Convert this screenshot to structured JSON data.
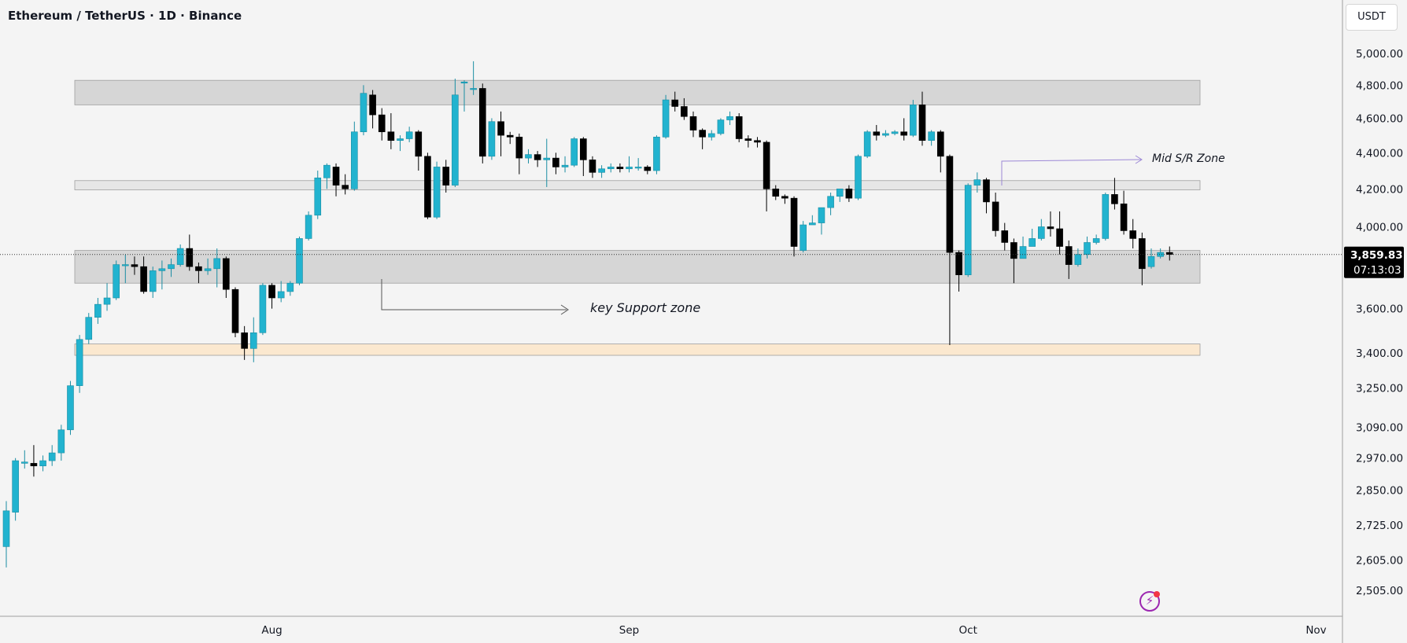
{
  "header": {
    "title": "Ethereum / TetherUS · 1D · Binance",
    "currency": "USDT"
  },
  "price_label": {
    "price": "3,859.83",
    "countdown": "07:13:03"
  },
  "colors": {
    "up": "#22b3cf",
    "down": "#000000",
    "zone_grey": "#d6d6d6",
    "zone_light": "#e6e6e6",
    "zone_orange": "#fbe8cf",
    "arrow_purple": "#9c88d6"
  },
  "chart_data": {
    "type": "candlestick",
    "title": "Ethereum / TetherUS · 1D · Binance",
    "yscale": "log",
    "ylim": [
      2420,
      5200
    ],
    "ytick_labels": [
      "5,000.00",
      "4,800.00",
      "4,600.00",
      "4,400.00",
      "4,200.00",
      "4,000.00",
      "3,600.00",
      "3,400.00",
      "3,250.00",
      "3,090.00",
      "2,970.00",
      "2,850.00",
      "2,725.00",
      "2,605.00",
      "2,505.00"
    ],
    "ytick_values": [
      5000,
      4800,
      4600,
      4400,
      4200,
      4000,
      3600,
      3400,
      3250,
      3090,
      2970,
      2850,
      2725,
      2605,
      2505
    ],
    "xtick_labels": [
      "Aug",
      "Sep",
      "Oct",
      "Nov"
    ],
    "xtick_index": [
      29,
      68,
      105,
      143
    ],
    "last_price": 3859.83,
    "zones": [
      {
        "name": "resistance-zone",
        "low": 4680,
        "high": 4830
      },
      {
        "name": "mid-sr-zone",
        "low": 4195,
        "high": 4245
      },
      {
        "name": "key-support-zone",
        "low": 3720,
        "high": 3880
      },
      {
        "name": "bottom-support-zone",
        "low": 3390,
        "high": 3440
      }
    ],
    "annotations": [
      {
        "name": "key-support-label",
        "text": "key Support zone"
      },
      {
        "name": "mid-sr-label",
        "text": "Mid S/R Zone"
      }
    ],
    "candles": [
      [
        2650,
        2775,
        2580,
        2810
      ],
      [
        2770,
        2960,
        2740,
        2970
      ],
      [
        2950,
        2955,
        2930,
        3000
      ],
      [
        2950,
        2940,
        2900,
        3020
      ],
      [
        2940,
        2960,
        2920,
        2980
      ],
      [
        2960,
        2990,
        2940,
        3020
      ],
      [
        2990,
        3080,
        2960,
        3100
      ],
      [
        3080,
        3260,
        3060,
        3280
      ],
      [
        3260,
        3460,
        3230,
        3480
      ],
      [
        3460,
        3560,
        3440,
        3580
      ],
      [
        3560,
        3620,
        3530,
        3650
      ],
      [
        3620,
        3650,
        3590,
        3720
      ],
      [
        3650,
        3810,
        3640,
        3830
      ],
      [
        3810,
        3810,
        3720,
        3860
      ],
      [
        3810,
        3800,
        3760,
        3850
      ],
      [
        3800,
        3680,
        3670,
        3850
      ],
      [
        3680,
        3780,
        3650,
        3800
      ],
      [
        3780,
        3790,
        3690,
        3830
      ],
      [
        3790,
        3810,
        3750,
        3840
      ],
      [
        3810,
        3890,
        3800,
        3910
      ],
      [
        3890,
        3800,
        3780,
        3960
      ],
      [
        3800,
        3780,
        3720,
        3820
      ],
      [
        3780,
        3790,
        3760,
        3840
      ],
      [
        3790,
        3840,
        3700,
        3890
      ],
      [
        3840,
        3690,
        3650,
        3850
      ],
      [
        3690,
        3490,
        3470,
        3700
      ],
      [
        3490,
        3420,
        3370,
        3520
      ],
      [
        3420,
        3490,
        3360,
        3560
      ],
      [
        3490,
        3710,
        3480,
        3720
      ],
      [
        3710,
        3650,
        3600,
        3720
      ],
      [
        3650,
        3680,
        3630,
        3730
      ],
      [
        3680,
        3720,
        3660,
        3730
      ],
      [
        3720,
        3940,
        3710,
        3950
      ],
      [
        3940,
        4060,
        3930,
        4080
      ],
      [
        4060,
        4260,
        4040,
        4300
      ],
      [
        4260,
        4330,
        4200,
        4340
      ],
      [
        4320,
        4220,
        4160,
        4340
      ],
      [
        4220,
        4200,
        4170,
        4280
      ],
      [
        4200,
        4520,
        4190,
        4580
      ],
      [
        4520,
        4750,
        4500,
        4800
      ],
      [
        4740,
        4620,
        4540,
        4770
      ],
      [
        4620,
        4520,
        4470,
        4660
      ],
      [
        4520,
        4470,
        4420,
        4630
      ],
      [
        4470,
        4480,
        4410,
        4500
      ],
      [
        4480,
        4520,
        4460,
        4550
      ],
      [
        4520,
        4380,
        4300,
        4530
      ],
      [
        4380,
        4050,
        4040,
        4400
      ],
      [
        4050,
        4320,
        4040,
        4350
      ],
      [
        4320,
        4220,
        4180,
        4360
      ],
      [
        4220,
        4740,
        4210,
        4840
      ],
      [
        4820,
        4820,
        4640,
        4830
      ],
      [
        4780,
        4780,
        4740,
        4950
      ],
      [
        4780,
        4380,
        4340,
        4810
      ],
      [
        4380,
        4580,
        4360,
        4600
      ],
      [
        4580,
        4500,
        4380,
        4640
      ],
      [
        4500,
        4490,
        4450,
        4520
      ],
      [
        4490,
        4370,
        4280,
        4510
      ],
      [
        4370,
        4390,
        4340,
        4420
      ],
      [
        4390,
        4360,
        4320,
        4410
      ],
      [
        4360,
        4370,
        4210,
        4480
      ],
      [
        4370,
        4320,
        4280,
        4400
      ],
      [
        4320,
        4330,
        4290,
        4380
      ],
      [
        4330,
        4480,
        4320,
        4490
      ],
      [
        4480,
        4360,
        4270,
        4490
      ],
      [
        4360,
        4290,
        4260,
        4380
      ],
      [
        4290,
        4310,
        4260,
        4330
      ],
      [
        4310,
        4320,
        4290,
        4340
      ],
      [
        4320,
        4310,
        4290,
        4340
      ],
      [
        4310,
        4320,
        4290,
        4380
      ],
      [
        4320,
        4320,
        4300,
        4370
      ],
      [
        4320,
        4300,
        4280,
        4330
      ],
      [
        4300,
        4490,
        4280,
        4500
      ],
      [
        4490,
        4710,
        4480,
        4740
      ],
      [
        4710,
        4670,
        4640,
        4760
      ],
      [
        4670,
        4610,
        4590,
        4720
      ],
      [
        4610,
        4530,
        4490,
        4640
      ],
      [
        4530,
        4490,
        4420,
        4540
      ],
      [
        4490,
        4510,
        4470,
        4530
      ],
      [
        4510,
        4590,
        4500,
        4600
      ],
      [
        4590,
        4610,
        4560,
        4640
      ],
      [
        4610,
        4480,
        4460,
        4630
      ],
      [
        4480,
        4470,
        4430,
        4500
      ],
      [
        4470,
        4460,
        4430,
        4490
      ],
      [
        4460,
        4200,
        4080,
        4470
      ],
      [
        4200,
        4160,
        4140,
        4220
      ],
      [
        4160,
        4150,
        4120,
        4170
      ],
      [
        4150,
        3900,
        3850,
        4160
      ],
      [
        3880,
        4010,
        3870,
        4030
      ],
      [
        4010,
        4020,
        4010,
        4060
      ],
      [
        4020,
        4100,
        3960,
        4100
      ],
      [
        4100,
        4160,
        4060,
        4180
      ],
      [
        4160,
        4200,
        4130,
        4200
      ],
      [
        4200,
        4150,
        4130,
        4220
      ],
      [
        4150,
        4380,
        4140,
        4390
      ],
      [
        4380,
        4520,
        4370,
        4530
      ],
      [
        4520,
        4500,
        4470,
        4560
      ],
      [
        4500,
        4510,
        4490,
        4530
      ],
      [
        4510,
        4520,
        4500,
        4530
      ],
      [
        4520,
        4500,
        4470,
        4600
      ],
      [
        4500,
        4680,
        4490,
        4710
      ],
      [
        4680,
        4470,
        4440,
        4760
      ],
      [
        4470,
        4520,
        4440,
        4530
      ],
      [
        4520,
        4380,
        4290,
        4530
      ],
      [
        4380,
        3870,
        3435,
        4390
      ],
      [
        3870,
        3760,
        3680,
        3880
      ],
      [
        3760,
        4220,
        3750,
        4230
      ],
      [
        4220,
        4250,
        4180,
        4290
      ],
      [
        4250,
        4130,
        4070,
        4260
      ],
      [
        4130,
        3980,
        3950,
        4180
      ],
      [
        3980,
        3920,
        3880,
        4020
      ],
      [
        3920,
        3840,
        3720,
        3940
      ],
      [
        3840,
        3900,
        3840,
        3950
      ],
      [
        3900,
        3940,
        3900,
        3990
      ],
      [
        3940,
        4000,
        3930,
        4040
      ],
      [
        4000,
        3990,
        3950,
        4080
      ],
      [
        3990,
        3900,
        3860,
        4080
      ],
      [
        3900,
        3810,
        3740,
        3930
      ],
      [
        3810,
        3860,
        3800,
        3890
      ],
      [
        3860,
        3920,
        3840,
        3950
      ],
      [
        3920,
        3940,
        3910,
        3960
      ],
      [
        3940,
        4170,
        3930,
        4180
      ],
      [
        4170,
        4120,
        4090,
        4260
      ],
      [
        4120,
        3980,
        3960,
        4190
      ],
      [
        3980,
        3940,
        3890,
        4040
      ],
      [
        3940,
        3790,
        3710,
        3970
      ],
      [
        3800,
        3850,
        3790,
        3890
      ],
      [
        3850,
        3870,
        3840,
        3890
      ],
      [
        3870,
        3860,
        3830,
        3900
      ]
    ]
  }
}
